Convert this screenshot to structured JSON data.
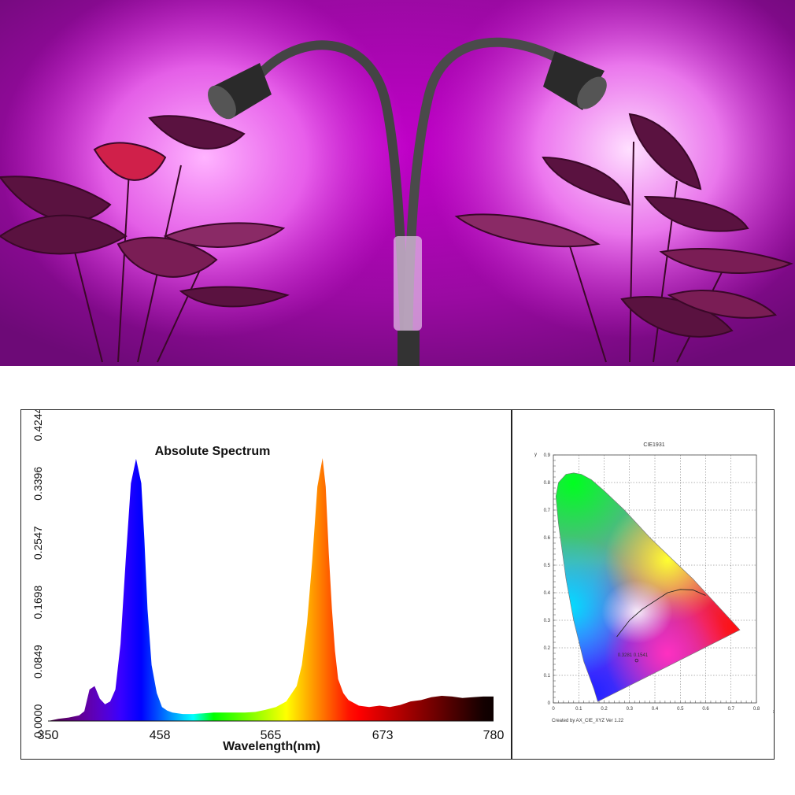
{
  "photo": {
    "subject": "dual gooseneck grow lamp over plants"
  },
  "chart_data": [
    {
      "type": "area",
      "title": "Absolute Spectrum",
      "xlabel": "Wavelength(nm)",
      "ylabel": "",
      "xlim": [
        350,
        780
      ],
      "ylim": [
        0,
        0.4244
      ],
      "x_ticks": [
        "350",
        "458",
        "565",
        "673",
        "780"
      ],
      "y_ticks": [
        "0.0000",
        "0.0849",
        "0.1698",
        "0.2547",
        "0.3396",
        "0.4244"
      ],
      "grid": false,
      "x": [
        350,
        360,
        370,
        380,
        385,
        390,
        395,
        400,
        405,
        410,
        415,
        420,
        425,
        430,
        435,
        440,
        443,
        446,
        450,
        455,
        460,
        465,
        470,
        480,
        490,
        500,
        510,
        520,
        530,
        540,
        550,
        560,
        570,
        580,
        590,
        595,
        600,
        605,
        610,
        615,
        618,
        621,
        624,
        627,
        630,
        635,
        640,
        650,
        660,
        670,
        680,
        690,
        700,
        710,
        720,
        730,
        740,
        750,
        760,
        770,
        780
      ],
      "values": [
        0.0,
        0.003,
        0.005,
        0.008,
        0.014,
        0.045,
        0.05,
        0.032,
        0.024,
        0.028,
        0.045,
        0.11,
        0.23,
        0.34,
        0.375,
        0.34,
        0.26,
        0.16,
        0.08,
        0.04,
        0.02,
        0.015,
        0.012,
        0.01,
        0.01,
        0.011,
        0.012,
        0.012,
        0.012,
        0.012,
        0.013,
        0.016,
        0.02,
        0.028,
        0.05,
        0.08,
        0.14,
        0.23,
        0.335,
        0.376,
        0.335,
        0.24,
        0.16,
        0.1,
        0.06,
        0.04,
        0.03,
        0.022,
        0.02,
        0.022,
        0.02,
        0.023,
        0.028,
        0.03,
        0.034,
        0.036,
        0.035,
        0.033,
        0.034,
        0.035,
        0.035
      ]
    },
    {
      "type": "scatter",
      "title": "CIE1931",
      "xlabel": "x",
      "ylabel": "y",
      "xlim": [
        0,
        0.8
      ],
      "ylim": [
        0,
        0.9
      ],
      "x_ticks": [
        "0",
        "0.1",
        "0.2",
        "0.3",
        "0.4",
        "0.5",
        "0.6",
        "0.7",
        "0.8"
      ],
      "y_ticks": [
        "0",
        "0.1",
        "0.2",
        "0.3",
        "0.4",
        "0.5",
        "0.6",
        "0.7",
        "0.8",
        "0.9"
      ],
      "grid": true,
      "point": {
        "x": 0.3281,
        "y": 0.1541,
        "label": "0.3281 0.1541"
      },
      "locus": {
        "x": [
          0.175,
          0.17,
          0.16,
          0.14,
          0.12,
          0.08,
          0.05,
          0.02,
          0.01,
          0.02,
          0.05,
          0.08,
          0.11,
          0.15,
          0.2,
          0.28,
          0.38,
          0.47,
          0.55,
          0.63,
          0.7,
          0.735
        ],
        "y": [
          0.005,
          0.02,
          0.05,
          0.1,
          0.15,
          0.3,
          0.45,
          0.65,
          0.75,
          0.8,
          0.83,
          0.835,
          0.83,
          0.81,
          0.77,
          0.7,
          0.6,
          0.52,
          0.45,
          0.37,
          0.3,
          0.265
        ]
      },
      "planckian": {
        "x": [
          0.25,
          0.3,
          0.35,
          0.4,
          0.45,
          0.5,
          0.55,
          0.6
        ],
        "y": [
          0.24,
          0.3,
          0.34,
          0.37,
          0.4,
          0.412,
          0.41,
          0.39
        ]
      },
      "credit": "Created by AX_CIE_XYZ Ver 1.22"
    }
  ]
}
